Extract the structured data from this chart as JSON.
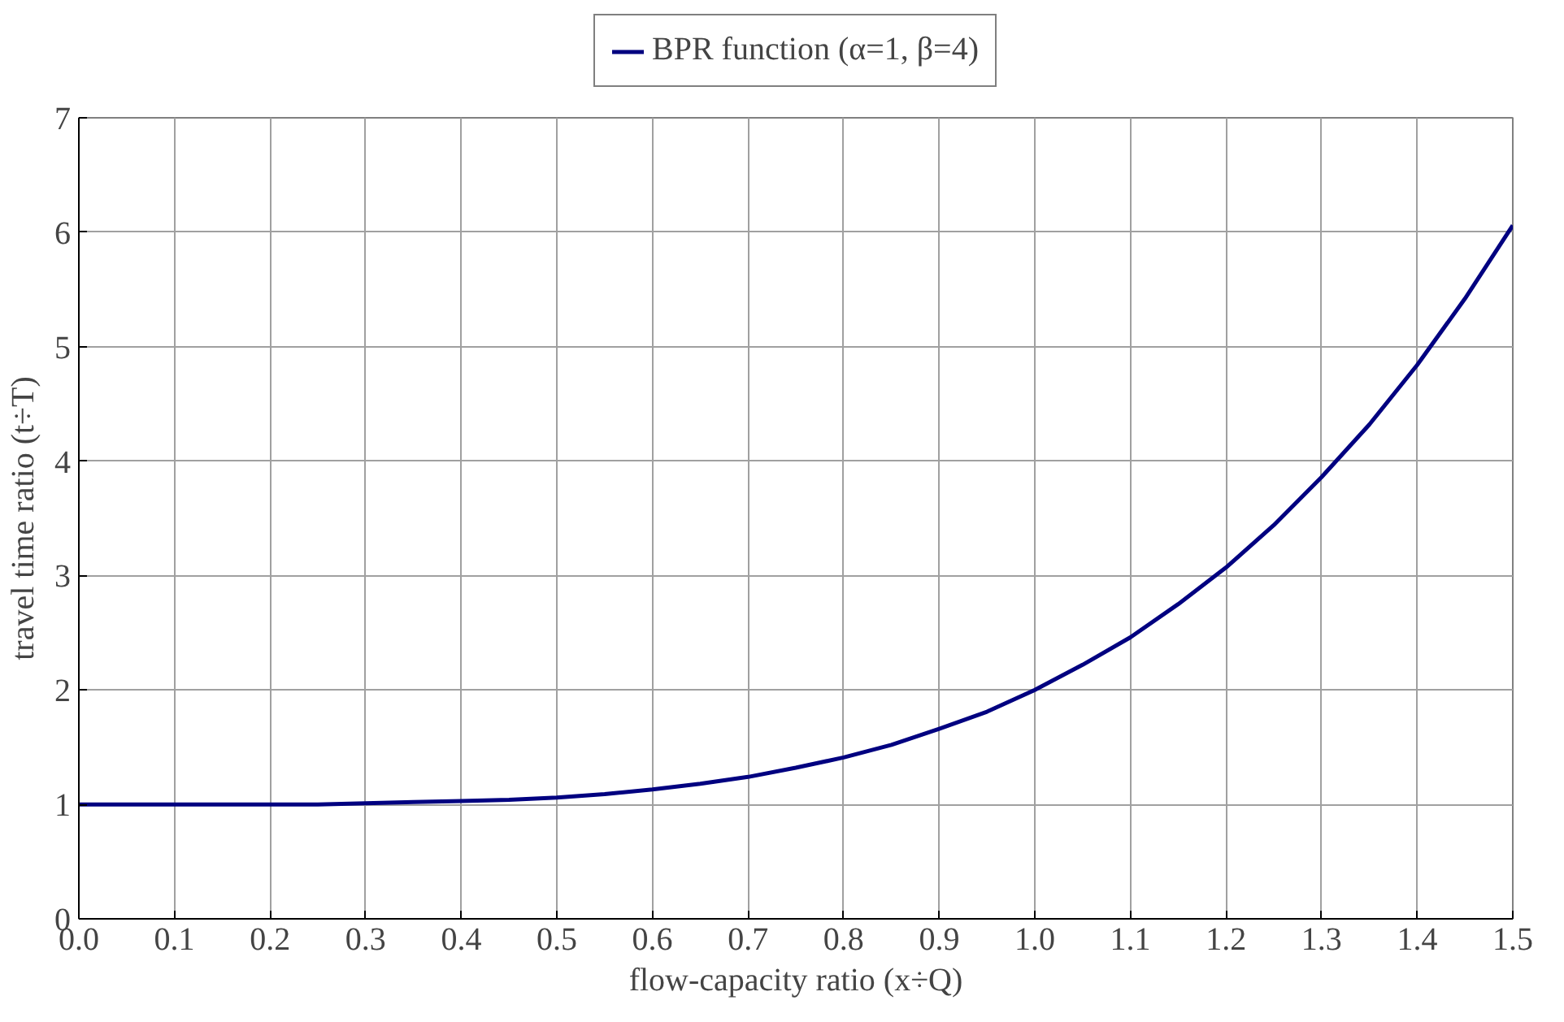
{
  "chart_data": {
    "type": "line",
    "xlabel": "flow-capacity ratio (x÷Q)",
    "ylabel": "travel time ratio (t÷T)",
    "x": [
      0,
      0.05,
      0.1,
      0.15,
      0.2,
      0.25,
      0.3,
      0.35,
      0.4,
      0.45,
      0.5,
      0.55,
      0.6,
      0.65,
      0.7,
      0.75,
      0.8,
      0.85,
      0.9,
      0.95,
      1.0,
      1.05,
      1.1,
      1.15,
      1.2,
      1.25,
      1.3,
      1.35,
      1.4,
      1.45,
      1.5
    ],
    "series": [
      {
        "name": "BPR function (α=1, β=4)",
        "color": "#000080",
        "values": [
          1,
          1,
          1,
          1,
          1,
          1,
          1.01,
          1.02,
          1.03,
          1.04,
          1.06,
          1.09,
          1.13,
          1.18,
          1.24,
          1.32,
          1.41,
          1.52,
          1.66,
          1.81,
          2.0,
          2.22,
          2.46,
          2.75,
          3.07,
          3.44,
          3.86,
          4.32,
          4.84,
          5.42,
          6.06
        ]
      }
    ],
    "xlim": [
      0,
      1.5
    ],
    "ylim": [
      0,
      7
    ],
    "xticks": [
      {
        "value": 0,
        "label": "0.0"
      },
      {
        "value": 0.1,
        "label": "0.1"
      },
      {
        "value": 0.2,
        "label": "0.2"
      },
      {
        "value": 0.3,
        "label": "0.3"
      },
      {
        "value": 0.4,
        "label": "0.4"
      },
      {
        "value": 0.5,
        "label": "0.5"
      },
      {
        "value": 0.6,
        "label": "0.6"
      },
      {
        "value": 0.7,
        "label": "0.7"
      },
      {
        "value": 0.8,
        "label": "0.8"
      },
      {
        "value": 0.9,
        "label": "0.9"
      },
      {
        "value": 1.0,
        "label": "1.0"
      },
      {
        "value": 1.1,
        "label": "1.1"
      },
      {
        "value": 1.2,
        "label": "1.2"
      },
      {
        "value": 1.3,
        "label": "1.3"
      },
      {
        "value": 1.4,
        "label": "1.4"
      },
      {
        "value": 1.5,
        "label": "1.5"
      }
    ],
    "yticks": [
      0,
      1,
      2,
      3,
      4,
      5,
      6,
      7
    ],
    "grid": true,
    "legend": "top",
    "marker": "none",
    "line_style": "solid"
  }
}
